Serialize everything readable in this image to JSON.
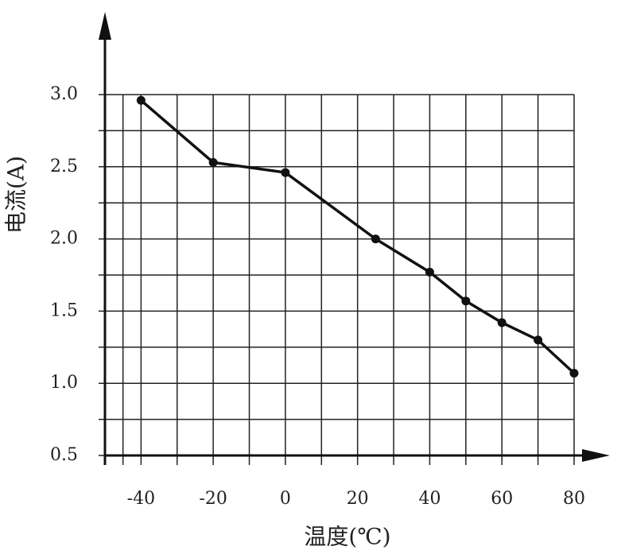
{
  "chart_data": {
    "type": "line",
    "y_label": "电流(A)",
    "x_label": "温度(℃)",
    "x": [
      -40,
      -20,
      0,
      25,
      40,
      50,
      60,
      70,
      80
    ],
    "values": [
      2.96,
      2.53,
      2.46,
      2.0,
      1.77,
      1.57,
      1.42,
      1.3,
      1.07
    ],
    "color": "#111111",
    "xlim": [
      -50,
      80
    ],
    "xticks": [
      -40,
      -20,
      0,
      20,
      40,
      60,
      80
    ],
    "ylim": [
      0.5,
      3.0
    ],
    "yticks": [
      0.5,
      {
        "value": 1,
        "label": "1.0"
      },
      1.5,
      {
        "value": 2,
        "label": "2.0"
      },
      2.5,
      {
        "value": 3,
        "label": "3.0"
      }
    ],
    "grid": true
  }
}
